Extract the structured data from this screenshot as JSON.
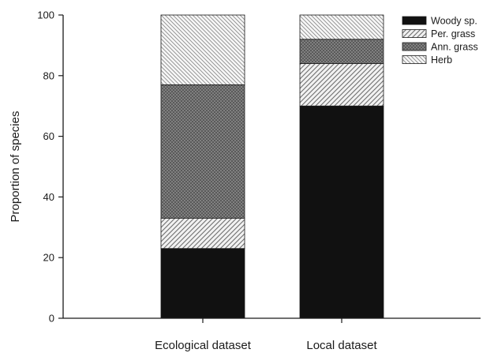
{
  "chart_data": {
    "type": "bar",
    "stacked": true,
    "title": "",
    "xlabel": "",
    "ylabel": "Proportion of species",
    "ylim": [
      0,
      100
    ],
    "yticks": [
      0,
      20,
      40,
      60,
      80,
      100
    ],
    "categories": [
      "Ecological dataset",
      "Local dataset"
    ],
    "series": [
      {
        "name": "Woody sp.",
        "values": [
          23,
          70
        ],
        "fill": "#111111",
        "pattern": "solid"
      },
      {
        "name": "Per. grass",
        "values": [
          10,
          14
        ],
        "fill": "#f2f2f2",
        "pattern": "diag-up"
      },
      {
        "name": "Ann. grass",
        "values": [
          44,
          8
        ],
        "fill": "#5a5a5a",
        "pattern": "crosshatch"
      },
      {
        "name": "Herb",
        "values": [
          23,
          8
        ],
        "fill": "#f7f7f7",
        "pattern": "diag-down"
      }
    ],
    "legend": "top-right",
    "grid": false
  }
}
